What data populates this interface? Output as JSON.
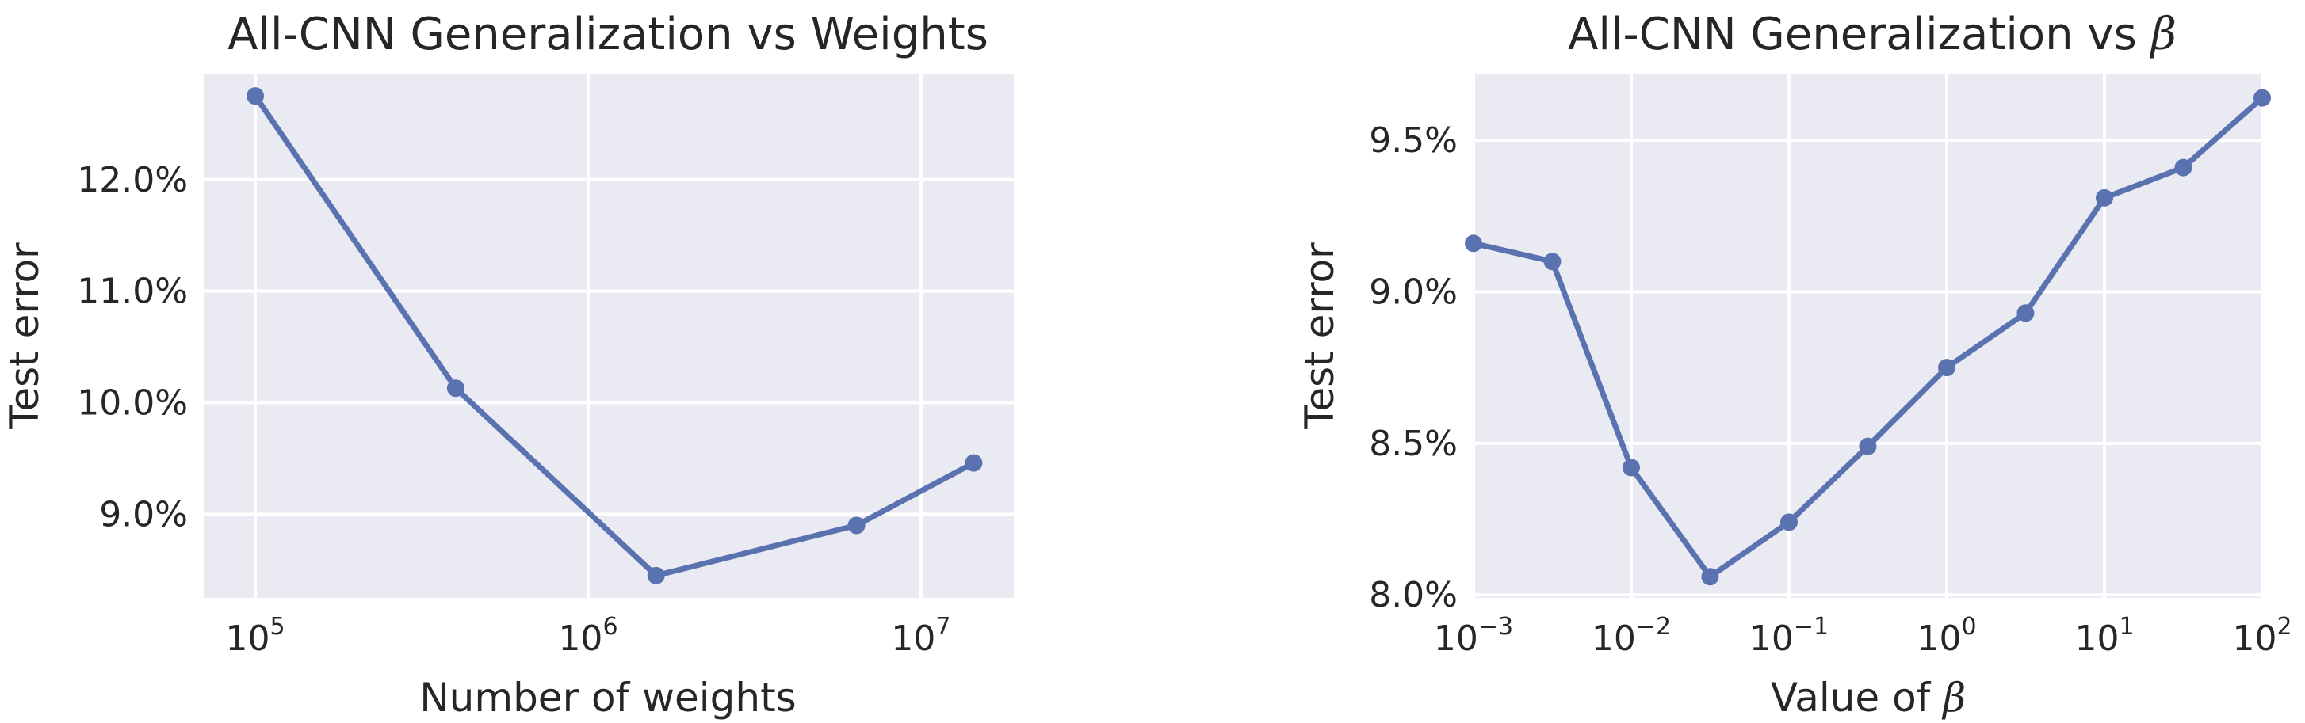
{
  "chart_data": [
    {
      "type": "line",
      "title": "All-CNN Generalization vs Weights",
      "xlabel": "Number of weights",
      "ylabel": "Test error",
      "xscale": "log",
      "xlim": [
        70000,
        19000000
      ],
      "ylim": [
        8.25,
        12.95
      ],
      "grid": true,
      "x_ticks": [
        {
          "base": "10",
          "exp": "5",
          "value": 100000
        },
        {
          "base": "10",
          "exp": "6",
          "value": 1000000
        },
        {
          "base": "10",
          "exp": "7",
          "value": 10000000
        }
      ],
      "y_ticks": [
        {
          "label": "9.0%",
          "value": 9.0
        },
        {
          "label": "10.0%",
          "value": 10.0
        },
        {
          "label": "11.0%",
          "value": 11.0
        },
        {
          "label": "12.0%",
          "value": 12.0
        }
      ],
      "series": [
        {
          "color": "#5a72b0",
          "x": [
            100000,
            400000,
            1600000,
            6400000,
            14400000
          ],
          "y": [
            12.75,
            10.13,
            8.45,
            8.9,
            9.46
          ]
        }
      ]
    },
    {
      "type": "line",
      "title_prefix": "All-CNN Generalization vs ",
      "title_symbol": "β",
      "xlabel_prefix": "Value of ",
      "xlabel_symbol": "β",
      "ylabel": "Test error",
      "xscale": "log",
      "xlim": [
        0.001,
        100
      ],
      "ylim": [
        7.99,
        9.72
      ],
      "grid": true,
      "x_ticks": [
        {
          "base": "10",
          "exp": "−3",
          "value": 0.001
        },
        {
          "base": "10",
          "exp": "−2",
          "value": 0.01
        },
        {
          "base": "10",
          "exp": "−1",
          "value": 0.1
        },
        {
          "base": "10",
          "exp": "0",
          "value": 1
        },
        {
          "base": "10",
          "exp": "1",
          "value": 10
        },
        {
          "base": "10",
          "exp": "2",
          "value": 100
        }
      ],
      "y_ticks": [
        {
          "label": "8.0%",
          "value": 8.0
        },
        {
          "label": "8.5%",
          "value": 8.5
        },
        {
          "label": "9.0%",
          "value": 9.0
        },
        {
          "label": "9.5%",
          "value": 9.5
        }
      ],
      "series": [
        {
          "color": "#5a72b0",
          "x": [
            0.001,
            0.00316,
            0.01,
            0.0316,
            0.1,
            0.316,
            1,
            3.16,
            10,
            31.6,
            100
          ],
          "y": [
            9.16,
            9.1,
            8.42,
            8.06,
            8.24,
            8.49,
            8.75,
            8.93,
            9.31,
            9.41,
            9.64
          ]
        }
      ]
    }
  ]
}
